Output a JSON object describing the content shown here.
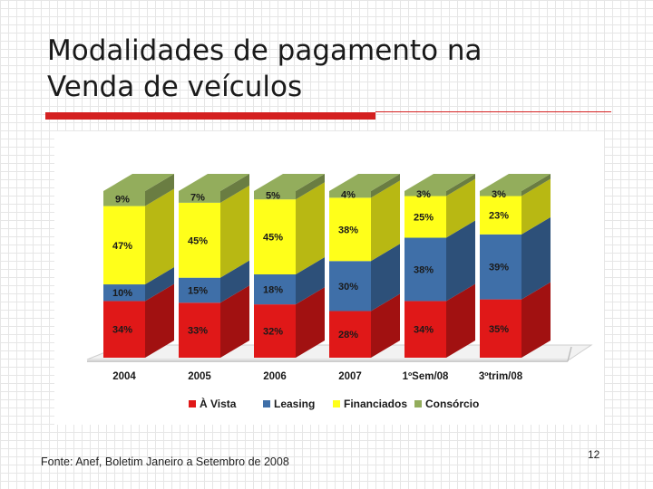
{
  "slide": {
    "title_line1": "Modalidades de pagamento na",
    "title_line2": "Venda de veículos",
    "source": "Fonte:  Anef, Boletim Janeiro a Setembro de 2008",
    "page_number": "12"
  },
  "chart_data": {
    "type": "bar",
    "stacked": true,
    "three_d": true,
    "categories": [
      "2004",
      "2005",
      "2006",
      "2007",
      "1ºSem/08",
      "3ºtrim/08"
    ],
    "series": [
      {
        "name": "À Vista",
        "color": "#e01818",
        "values": [
          34,
          33,
          32,
          28,
          34,
          35
        ]
      },
      {
        "name": "Leasing",
        "color": "#3f6fa8",
        "values": [
          10,
          15,
          18,
          30,
          38,
          39
        ]
      },
      {
        "name": "Financiados",
        "color": "#ffff1a",
        "values": [
          47,
          45,
          45,
          38,
          25,
          23
        ]
      },
      {
        "name": "Consórcio",
        "color": "#93ad5c",
        "values": [
          9,
          7,
          5,
          4,
          3,
          3
        ]
      }
    ],
    "value_suffix": "%",
    "legend_position": "bottom",
    "grid": false
  }
}
